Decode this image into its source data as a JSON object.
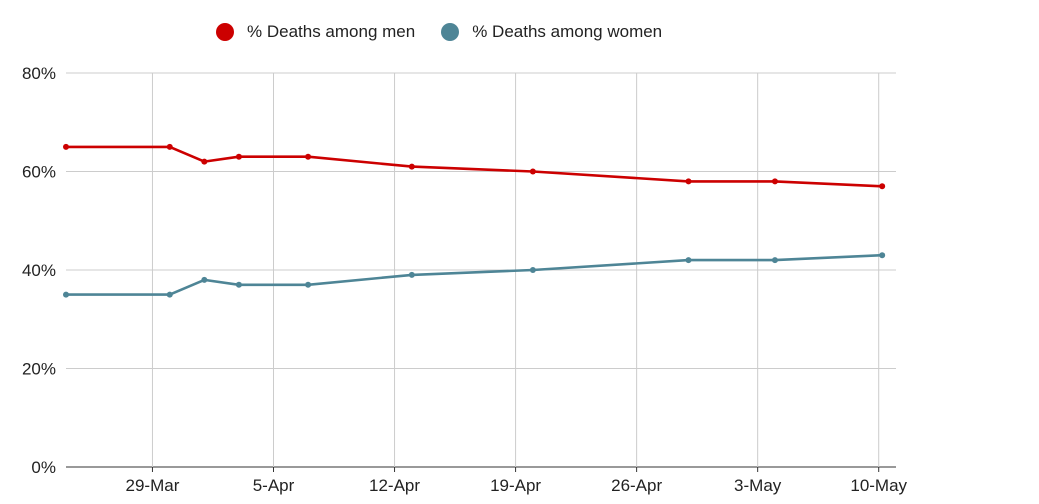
{
  "chart_data": {
    "type": "line",
    "title": "",
    "xlabel": "",
    "ylabel": "",
    "ylim": [
      0,
      80
    ],
    "y_ticks": [
      "0%",
      "20%",
      "40%",
      "60%",
      "80%"
    ],
    "y_tick_values": [
      0,
      20,
      40,
      60,
      80
    ],
    "x_tick_labels": [
      "29-Mar",
      "5-Apr",
      "12-Apr",
      "19-Apr",
      "26-Apr",
      "3-May",
      "10-May"
    ],
    "x_tick_days": [
      29,
      36,
      43,
      50,
      57,
      64,
      71
    ],
    "x_range_days": [
      24,
      72
    ],
    "grid": true,
    "legend_position": "top",
    "series": [
      {
        "name": "% Deaths among men",
        "color": "#cc0000",
        "x_days": [
          24,
          30,
          32,
          34,
          38,
          44,
          51,
          60,
          65,
          71.2
        ],
        "values": [
          65,
          65,
          62,
          63,
          63,
          61,
          60,
          58,
          58,
          57
        ]
      },
      {
        "name": "% Deaths among women",
        "color": "#4e8596",
        "x_days": [
          24,
          30,
          32,
          34,
          38,
          44,
          51,
          60,
          65,
          71.2
        ],
        "values": [
          35,
          35,
          38,
          37,
          37,
          39,
          40,
          42,
          42,
          43
        ]
      }
    ]
  }
}
